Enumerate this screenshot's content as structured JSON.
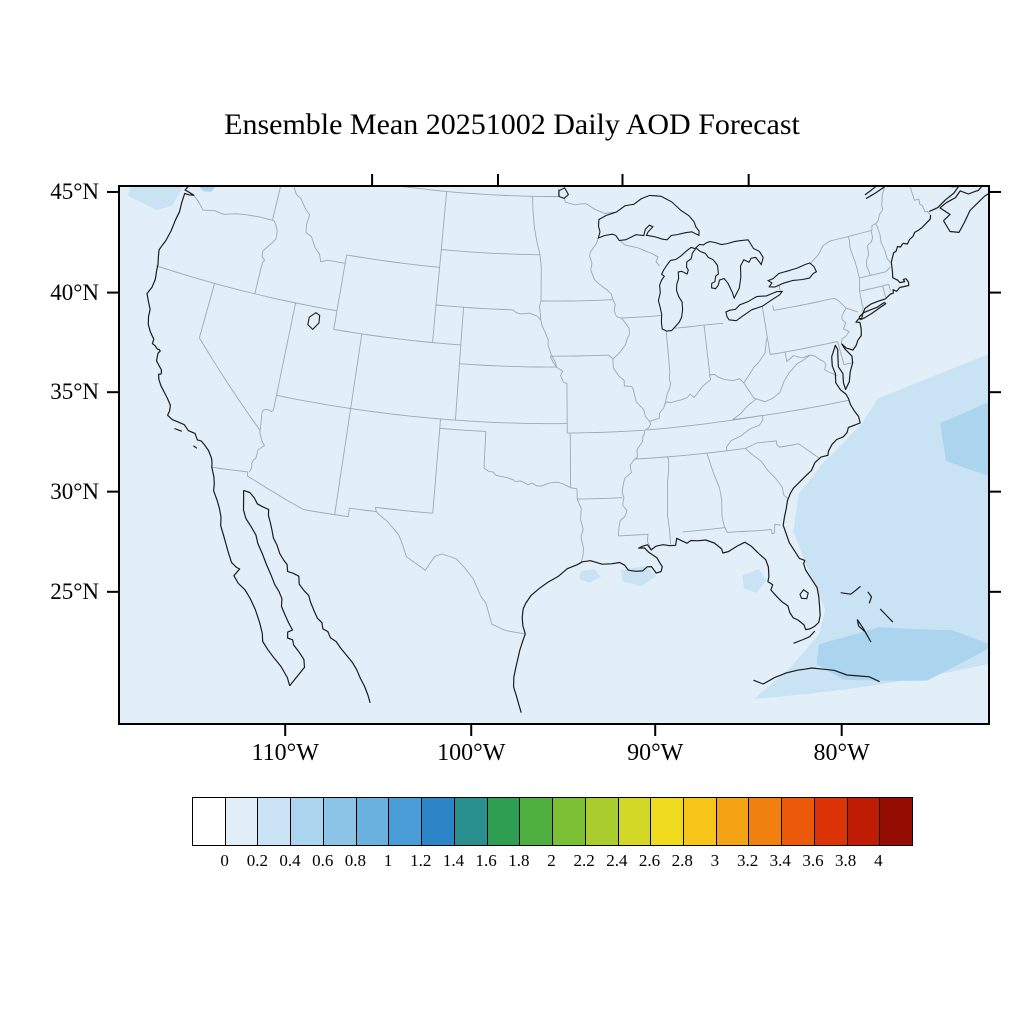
{
  "title": "Ensemble Mean 20251002 Daily AOD Forecast",
  "map": {
    "y_axis": {
      "labels": [
        "45°N",
        "40°N",
        "35°N",
        "30°N",
        "25°N"
      ],
      "values": [
        45,
        40,
        35,
        30,
        25
      ]
    },
    "x_axis": {
      "labels": [
        "110°W",
        "100°W",
        "90°W",
        "80°W"
      ],
      "values": [
        -110,
        -100,
        -90,
        -80
      ]
    }
  },
  "colorbar": {
    "tick_labels": [
      "0",
      "0.2",
      "0.4",
      "0.6",
      "0.8",
      "1",
      "1.2",
      "1.4",
      "1.6",
      "1.8",
      "2",
      "2.2",
      "2.4",
      "2.6",
      "2.8",
      "3",
      "3.2",
      "3.4",
      "3.6",
      "3.8",
      "4"
    ],
    "levels": [
      0,
      0.2,
      0.4,
      0.6,
      0.8,
      1,
      1.2,
      1.4,
      1.6,
      1.8,
      2,
      2.2,
      2.4,
      2.6,
      2.8,
      3,
      3.2,
      3.4,
      3.6,
      3.8,
      4
    ],
    "colors": [
      "#FFFFFF",
      "#E2EFF8",
      "#C9E3F5",
      "#ABD4EF",
      "#8CC4E8",
      "#6BB1E0",
      "#4A9DD6",
      "#2B85C7",
      "#2A8F8F",
      "#2E9E52",
      "#4FAF3E",
      "#7BBF34",
      "#A8CD2C",
      "#D2D825",
      "#EFDA1E",
      "#F7C419",
      "#F4A314",
      "#F0800F",
      "#EA5A0A",
      "#DC3407",
      "#BF1B05",
      "#960E03"
    ]
  },
  "colors": {
    "background_fill": "#E2EFF8",
    "coastline": "#1c1c1c",
    "state_borders": "#9FA8B2",
    "frame": "#000000"
  },
  "chart_data": {
    "type": "heatmap",
    "title": "Ensemble Mean 20251002 Daily AOD Forecast",
    "variable": "Aerosol Optical Depth (AOD)",
    "date": "20251002",
    "region": "Continental United States",
    "lat_ticks": [
      25,
      30,
      35,
      40,
      45
    ],
    "lon_ticks": [
      -110,
      -100,
      -90,
      -80
    ],
    "colorbar_range": [
      0,
      4
    ],
    "colorbar_step": 0.2,
    "background_aod": "0-0.2",
    "aod_features": [
      {
        "region": "Pacific Ocean off Washington-Oregon coast",
        "aod": "0.2-0.4"
      },
      {
        "region": "Puget Sound / west-central Washington plume",
        "aod": "0.4-1.2"
      },
      {
        "region": "Western Atlantic off the Southeast US coast",
        "aod": "0.2-0.4"
      },
      {
        "region": "Offshore Atlantic patch near right map edge ~33N",
        "aod": "0.4-0.6"
      },
      {
        "region": "Bahamas-Cuba band at bottom right",
        "aod": "0.4-0.6"
      },
      {
        "region": "Nearshore Gulf of Mexico patches off Louisiana and Texas",
        "aod": "0.2-0.4"
      },
      {
        "region": "Gulf patch west of Tampa, Florida",
        "aod": "0.2-0.4"
      }
    ]
  }
}
